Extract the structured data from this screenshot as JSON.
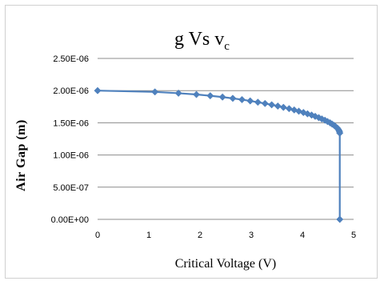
{
  "chart_data": {
    "type": "line",
    "title_main": "g Vs v",
    "title_sub": "c",
    "xlabel": "Critical Voltage (V)",
    "ylabel": "Air Gap (m)",
    "xlim": [
      0,
      5
    ],
    "ylim": [
      0,
      2.5e-06
    ],
    "x_ticks": [
      "0",
      "1",
      "2",
      "3",
      "4",
      "5"
    ],
    "y_ticks": [
      "0.00E+00",
      "5.00E-07",
      "1.00E-06",
      "1.50E-06",
      "2.00E-06",
      "2.50E-06"
    ],
    "grid": "horizontal",
    "legend": "none",
    "series_color": "#4f81bd",
    "series": [
      {
        "points": [
          [
            0.0,
            2e-06
          ],
          [
            1.12,
            1.98e-06
          ],
          [
            1.58,
            1.96e-06
          ],
          [
            1.93,
            1.94e-06
          ],
          [
            2.2,
            1.92e-06
          ],
          [
            2.44,
            1.9e-06
          ],
          [
            2.64,
            1.88e-06
          ],
          [
            2.82,
            1.86e-06
          ],
          [
            2.98,
            1.84e-06
          ],
          [
            3.13,
            1.82e-06
          ],
          [
            3.27,
            1.8e-06
          ],
          [
            3.4,
            1.78e-06
          ],
          [
            3.52,
            1.76e-06
          ],
          [
            3.63,
            1.74e-06
          ],
          [
            3.74,
            1.72e-06
          ],
          [
            3.84,
            1.7e-06
          ],
          [
            3.93,
            1.68e-06
          ],
          [
            4.02,
            1.66e-06
          ],
          [
            4.1,
            1.64e-06
          ],
          [
            4.18,
            1.62e-06
          ],
          [
            4.25,
            1.6e-06
          ],
          [
            4.32,
            1.58e-06
          ],
          [
            4.38,
            1.56e-06
          ],
          [
            4.44,
            1.54e-06
          ],
          [
            4.49,
            1.52e-06
          ],
          [
            4.54,
            1.5e-06
          ],
          [
            4.58,
            1.48e-06
          ],
          [
            4.62,
            1.46e-06
          ],
          [
            4.65,
            1.44e-06
          ],
          [
            4.68,
            1.42e-06
          ],
          [
            4.7,
            1.4e-06
          ],
          [
            4.715,
            1.38e-06
          ],
          [
            4.725,
            1.36e-06
          ],
          [
            4.73,
            1.34e-06
          ],
          [
            4.73,
            0.0
          ]
        ]
      }
    ]
  }
}
